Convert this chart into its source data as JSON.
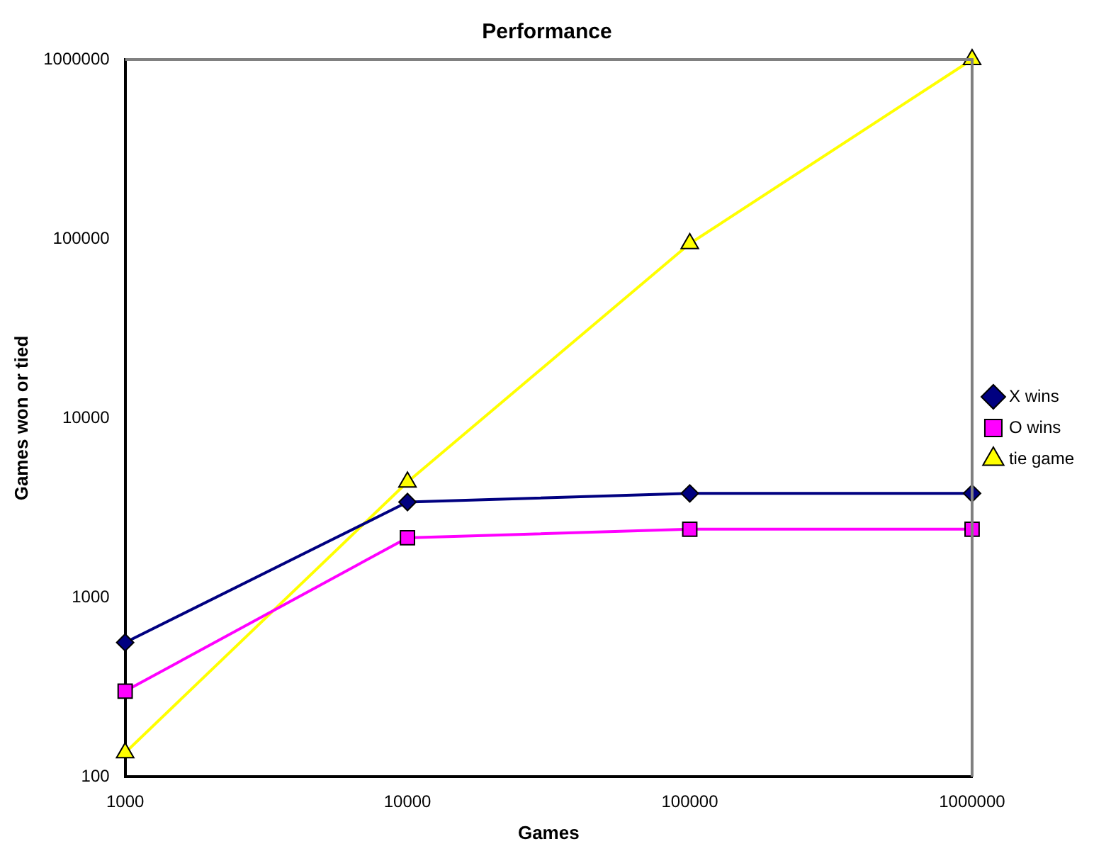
{
  "chart_data": {
    "type": "line",
    "title": "Performance",
    "xlabel": "Games",
    "ylabel": "Games won or tied",
    "categories": [
      "1000",
      "10000",
      "100000",
      "1000000"
    ],
    "series": [
      {
        "name": "X wins",
        "color": "#000080",
        "marker": "diamond",
        "values": [
          560,
          3400,
          3800,
          3800
        ]
      },
      {
        "name": "O wins",
        "color": "#ff00ff",
        "marker": "square",
        "values": [
          300,
          2150,
          2400,
          2400
        ]
      },
      {
        "name": "tie game",
        "color": "#ffff00",
        "marker": "triangle",
        "values": [
          136,
          4400,
          94000,
          1000000
        ]
      }
    ],
    "log": "y",
    "ylim": [
      100,
      1000000
    ],
    "yticks": [
      100,
      1000,
      10000,
      100000,
      1000000
    ],
    "grid": false,
    "legend": "right",
    "line_style": "solid"
  }
}
